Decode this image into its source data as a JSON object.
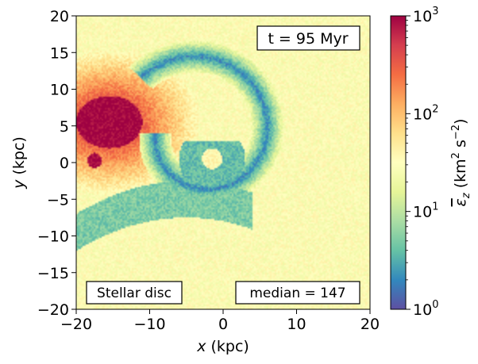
{
  "chart_data": {
    "type": "heatmap",
    "title": "",
    "xlabel_var": "x",
    "xlabel_unit": " (kpc)",
    "ylabel_var": "y",
    "ylabel_unit": " (kpc)",
    "xlim": [
      -20,
      20
    ],
    "ylim": [
      -20,
      20
    ],
    "xticks": [
      {
        "value": -20,
        "label": "−20"
      },
      {
        "value": -10,
        "label": "−10"
      },
      {
        "value": 0,
        "label": "0"
      },
      {
        "value": 10,
        "label": "10"
      },
      {
        "value": 20,
        "label": "20"
      }
    ],
    "yticks": [
      {
        "value": -20,
        "label": "−20"
      },
      {
        "value": -15,
        "label": "−15"
      },
      {
        "value": -10,
        "label": "−10"
      },
      {
        "value": -5,
        "label": "−5"
      },
      {
        "value": 0,
        "label": "0"
      },
      {
        "value": 5,
        "label": "5"
      },
      {
        "value": 10,
        "label": "10"
      },
      {
        "value": 15,
        "label": "15"
      },
      {
        "value": 20,
        "label": "20"
      }
    ],
    "colorbar": {
      "scale": "log",
      "colormap": "Spectral_r",
      "range": [
        1,
        1000
      ],
      "ticks": [
        {
          "value": 1,
          "base": "10",
          "exp": "0"
        },
        {
          "value": 10,
          "base": "10",
          "exp": "1"
        },
        {
          "value": 100,
          "base": "10",
          "exp": "2"
        },
        {
          "value": 1000,
          "base": "10",
          "exp": "3"
        }
      ],
      "label_main": "ε",
      "label_sub": "z",
      "label_units_open": " (km",
      "label_units_exp1": "2",
      "label_units_mid": " s",
      "label_units_exp2": "−2",
      "label_units_close": ")"
    },
    "annotations": {
      "time": "t = 95 Myr",
      "component": "Stellar disc",
      "median": "median =  147"
    },
    "features": {
      "hot_core_center": [
        -15.5,
        5.5
      ],
      "background_level": 30,
      "core_level": 1000,
      "cold_arm_level": 2,
      "small_clump_center": [
        -17.5,
        0.3
      ],
      "ring_center": [
        -1.5,
        0.5
      ]
    }
  }
}
